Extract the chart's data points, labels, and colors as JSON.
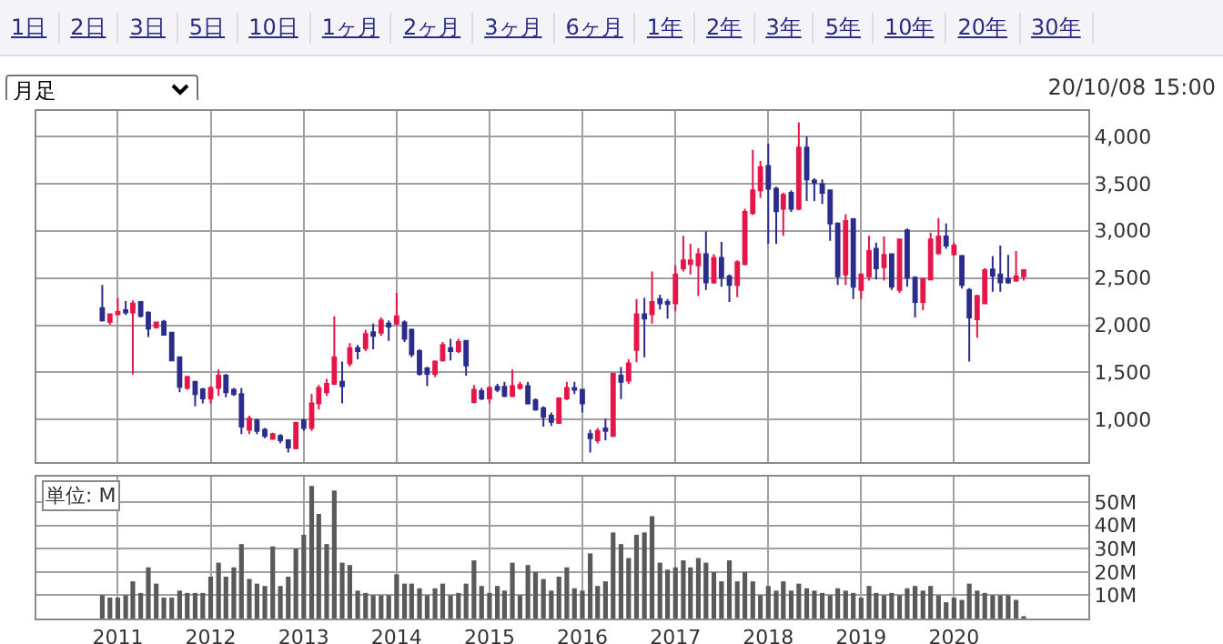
{
  "chart_data": [
    {
      "type": "other",
      "annotations": [
        "1日",
        "2日",
        "3日",
        "5日",
        "10日",
        "1ヶ月",
        "2ヶ月",
        "3ヶ月",
        "6ヶ月",
        "1年",
        "2年",
        "3年",
        "5年",
        "10年",
        "20年",
        "30年"
      ]
    },
    {
      "type": "candlestick",
      "title": "月足",
      "subtitle": "20/10/08 15:00",
      "x": [
        "2010-11",
        "2010-12",
        "2011-01",
        "2011-02",
        "2011-03",
        "2011-04",
        "2011-05",
        "2011-06",
        "2011-07",
        "2011-08",
        "2011-09",
        "2011-10",
        "2011-11",
        "2011-12",
        "2012-01",
        "2012-02",
        "2012-03",
        "2012-04",
        "2012-05",
        "2012-06",
        "2012-07",
        "2012-08",
        "2012-09",
        "2012-10",
        "2012-11",
        "2012-12",
        "2013-01",
        "2013-02",
        "2013-03",
        "2013-04",
        "2013-05",
        "2013-06",
        "2013-07",
        "2013-08",
        "2013-09",
        "2013-10",
        "2013-11",
        "2013-12",
        "2014-01",
        "2014-02",
        "2014-03",
        "2014-04",
        "2014-05",
        "2014-06",
        "2014-07",
        "2014-08",
        "2014-09",
        "2014-10",
        "2014-11",
        "2014-12",
        "2015-01",
        "2015-02",
        "2015-03",
        "2015-04",
        "2015-05",
        "2015-06",
        "2015-07",
        "2015-08",
        "2015-09",
        "2015-10",
        "2015-11",
        "2015-12",
        "2016-01",
        "2016-02",
        "2016-03",
        "2016-04",
        "2016-05",
        "2016-06",
        "2016-07",
        "2016-08",
        "2016-09",
        "2016-10",
        "2016-11",
        "2016-12",
        "2017-01",
        "2017-02",
        "2017-03",
        "2017-04",
        "2017-05",
        "2017-06",
        "2017-07",
        "2017-08",
        "2017-09",
        "2017-10",
        "2017-11",
        "2017-12",
        "2018-01",
        "2018-02",
        "2018-03",
        "2018-04",
        "2018-05",
        "2018-06",
        "2018-07",
        "2018-08",
        "2018-09",
        "2018-10",
        "2018-11",
        "2018-12",
        "2019-01",
        "2019-02",
        "2019-03",
        "2019-04",
        "2019-05",
        "2019-06",
        "2019-07",
        "2019-08",
        "2019-09",
        "2019-10",
        "2019-11",
        "2019-12",
        "2020-01",
        "2020-02",
        "2020-03",
        "2020-04",
        "2020-05",
        "2020-06",
        "2020-07",
        "2020-08",
        "2020-09",
        "2020-10"
      ],
      "ohlc": [
        [
          2180,
          2427,
          2040,
          2050
        ],
        [
          2037,
          2115,
          2005,
          2115
        ],
        [
          2115,
          2290,
          2105,
          2140
        ],
        [
          2160,
          2257,
          2108,
          2135
        ],
        [
          2135,
          2264,
          1478,
          2230
        ],
        [
          2245,
          2245,
          2082,
          2100
        ],
        [
          2134,
          2147,
          1874,
          1965
        ],
        [
          1978,
          2030,
          1965,
          2030
        ],
        [
          2037,
          2056,
          1900,
          1900
        ],
        [
          1920,
          1920,
          1627,
          1627
        ],
        [
          1660,
          1660,
          1290,
          1348
        ],
        [
          1335,
          1465,
          1315,
          1452
        ],
        [
          1400,
          1400,
          1140,
          1270
        ],
        [
          1322,
          1335,
          1172,
          1225
        ],
        [
          1225,
          1354,
          1172,
          1335
        ],
        [
          1335,
          1530,
          1250,
          1465
        ],
        [
          1465,
          1485,
          1237,
          1290
        ],
        [
          1315,
          1335,
          1250,
          1270
        ],
        [
          1270,
          1335,
          847,
          925
        ],
        [
          893,
          1042,
          847,
          1010
        ],
        [
          990,
          1010,
          847,
          880
        ],
        [
          893,
          912,
          802,
          828
        ],
        [
          795,
          860,
          790,
          847
        ],
        [
          828,
          847,
          750,
          782
        ],
        [
          782,
          790,
          652,
          705
        ],
        [
          698,
          977,
          685,
          964
        ],
        [
          990,
          1010,
          880,
          912
        ],
        [
          912,
          1270,
          880,
          1172
        ],
        [
          1172,
          1367,
          1107,
          1335
        ],
        [
          1290,
          1432,
          1250,
          1380
        ],
        [
          1380,
          2095,
          1367,
          1660
        ],
        [
          1400,
          1615,
          1172,
          1355
        ],
        [
          1595,
          1810,
          1562,
          1757
        ],
        [
          1757,
          1790,
          1640,
          1725
        ],
        [
          1757,
          1952,
          1725,
          1907
        ],
        [
          1926,
          2017,
          1745,
          1887
        ],
        [
          1920,
          2082,
          1887,
          2050
        ],
        [
          2017,
          2050,
          1835,
          1985
        ],
        [
          2017,
          2342,
          1998,
          2095
        ],
        [
          2030,
          2050,
          1822,
          1855
        ],
        [
          1952,
          1965,
          1660,
          1692
        ],
        [
          1725,
          1744,
          1465,
          1484
        ],
        [
          1543,
          1560,
          1354,
          1484
        ],
        [
          1484,
          1627,
          1452,
          1614
        ],
        [
          1627,
          1822,
          1614,
          1790
        ],
        [
          1757,
          1855,
          1627,
          1725
        ],
        [
          1725,
          1855,
          1705,
          1822
        ],
        [
          1835,
          1835,
          1465,
          1575
        ],
        [
          1185,
          1367,
          1172,
          1315
        ],
        [
          1302,
          1335,
          1205,
          1225
        ],
        [
          1225,
          1354,
          1172,
          1335
        ],
        [
          1348,
          1380,
          1290,
          1315
        ],
        [
          1348,
          1400,
          1237,
          1250
        ],
        [
          1250,
          1530,
          1237,
          1354
        ],
        [
          1335,
          1400,
          1315,
          1367
        ],
        [
          1354,
          1400,
          1160,
          1172
        ],
        [
          1205,
          1225,
          1094,
          1107
        ],
        [
          1120,
          1140,
          925,
          1029
        ],
        [
          1042,
          1075,
          932,
          977
        ],
        [
          964,
          1237,
          955,
          1225
        ],
        [
          1225,
          1400,
          1205,
          1335
        ],
        [
          1335,
          1400,
          1270,
          1315
        ],
        [
          1315,
          1315,
          1075,
          1172
        ],
        [
          847,
          893,
          652,
          802
        ],
        [
          782,
          912,
          750,
          880
        ],
        [
          906,
          1010,
          782,
          880
        ],
        [
          828,
          1497,
          815,
          1484
        ],
        [
          1465,
          1556,
          1218,
          1400
        ],
        [
          1413,
          1640,
          1380,
          1595
        ],
        [
          1738,
          2277,
          1608,
          2115
        ],
        [
          2115,
          2290,
          1660,
          2070
        ],
        [
          2115,
          2570,
          2017,
          2245
        ],
        [
          2277,
          2323,
          2167,
          2232
        ],
        [
          2245,
          2277,
          2070,
          2225
        ],
        [
          2232,
          2635,
          2147,
          2537
        ],
        [
          2602,
          2947,
          2570,
          2687
        ],
        [
          2648,
          2862,
          2537,
          2687
        ],
        [
          2635,
          2817,
          2310,
          2752
        ],
        [
          2752,
          2992,
          2375,
          2453
        ],
        [
          2453,
          2752,
          2440,
          2713
        ],
        [
          2713,
          2882,
          2408,
          2505
        ],
        [
          2518,
          2537,
          2245,
          2427
        ],
        [
          2427,
          2687,
          2297,
          2667
        ],
        [
          2648,
          3233,
          2635,
          3200
        ],
        [
          3188,
          3857,
          3168,
          3428
        ],
        [
          3428,
          3740,
          3350,
          3675
        ],
        [
          3688,
          3922,
          2862,
          3447
        ],
        [
          3447,
          3467,
          2862,
          3207
        ],
        [
          3233,
          3402,
          2947,
          3382
        ],
        [
          3402,
          3428,
          3200,
          3233
        ],
        [
          3233,
          4150,
          3220,
          3883
        ],
        [
          3883,
          4000,
          3317,
          3545
        ],
        [
          3532,
          3558,
          3317,
          3512
        ],
        [
          3493,
          3545,
          3285,
          3402
        ],
        [
          3428,
          3428,
          2895,
          3077
        ],
        [
          3077,
          3090,
          2427,
          2518
        ],
        [
          2537,
          3175,
          2427,
          3103
        ],
        [
          3122,
          3135,
          2277,
          2408
        ],
        [
          2375,
          2550,
          2277,
          2537
        ],
        [
          2518,
          2947,
          2473,
          2785
        ],
        [
          2810,
          2875,
          2485,
          2602
        ],
        [
          2615,
          2940,
          2473,
          2745
        ],
        [
          2752,
          2760,
          2375,
          2408
        ],
        [
          2375,
          2908,
          2342,
          2908
        ],
        [
          3005,
          3025,
          2408,
          2505
        ],
        [
          2505,
          2518,
          2082,
          2245
        ],
        [
          2245,
          2505,
          2160,
          2492
        ],
        [
          2485,
          2980,
          2485,
          2908
        ],
        [
          2765,
          3135,
          2745,
          2940
        ],
        [
          2940,
          3077,
          2810,
          2843
        ],
        [
          2752,
          2875,
          2732,
          2843
        ],
        [
          2732,
          2745,
          2388,
          2427
        ],
        [
          2375,
          2394,
          1614,
          2082
        ],
        [
          2063,
          2323,
          1868,
          2310
        ],
        [
          2232,
          2602,
          2225,
          2583
        ],
        [
          2590,
          2732,
          2355,
          2525
        ],
        [
          2537,
          2843,
          2355,
          2453
        ],
        [
          2492,
          2745,
          2440,
          2453
        ],
        [
          2472,
          2785,
          2460,
          2518
        ],
        [
          2518,
          2595,
          2472,
          2583
        ]
      ],
      "colors": [
        "#2b2c8c",
        "#e5164a",
        "#e5164a",
        "#2b2c8c",
        "#e5164a",
        "#2b2c8c",
        "#2b2c8c",
        "#e5164a",
        "#2b2c8c",
        "#2b2c8c",
        "#2b2c8c",
        "#e5164a",
        "#2b2c8c",
        "#2b2c8c",
        "#e5164a",
        "#e5164a",
        "#2b2c8c",
        "#2b2c8c",
        "#2b2c8c",
        "#e5164a",
        "#2b2c8c",
        "#2b2c8c",
        "#e5164a",
        "#2b2c8c",
        "#2b2c8c",
        "#e5164a",
        "#2b2c8c",
        "#e5164a",
        "#e5164a",
        "#e5164a",
        "#e5164a",
        "#2b2c8c",
        "#e5164a",
        "#2b2c8c",
        "#e5164a",
        "#2b2c8c",
        "#e5164a",
        "#2b2c8c",
        "#e5164a",
        "#2b2c8c",
        "#2b2c8c",
        "#2b2c8c",
        "#2b2c8c",
        "#e5164a",
        "#e5164a",
        "#2b2c8c",
        "#e5164a",
        "#2b2c8c",
        "#e5164a",
        "#2b2c8c",
        "#e5164a",
        "#2b2c8c",
        "#2b2c8c",
        "#e5164a",
        "#e5164a",
        "#2b2c8c",
        "#2b2c8c",
        "#2b2c8c",
        "#2b2c8c",
        "#e5164a",
        "#e5164a",
        "#2b2c8c",
        "#2b2c8c",
        "#2b2c8c",
        "#e5164a",
        "#2b2c8c",
        "#e5164a",
        "#2b2c8c",
        "#e5164a",
        "#e5164a",
        "#2b2c8c",
        "#e5164a",
        "#2b2c8c",
        "#2b2c8c",
        "#e5164a",
        "#e5164a",
        "#e5164a",
        "#e5164a",
        "#2b2c8c",
        "#e5164a",
        "#2b2c8c",
        "#2b2c8c",
        "#e5164a",
        "#e5164a",
        "#e5164a",
        "#e5164a",
        "#2b2c8c",
        "#2b2c8c",
        "#e5164a",
        "#2b2c8c",
        "#e5164a",
        "#2b2c8c",
        "#2b2c8c",
        "#2b2c8c",
        "#2b2c8c",
        "#2b2c8c",
        "#e5164a",
        "#2b2c8c",
        "#e5164a",
        "#e5164a",
        "#2b2c8c",
        "#e5164a",
        "#2b2c8c",
        "#e5164a",
        "#2b2c8c",
        "#2b2c8c",
        "#e5164a",
        "#e5164a",
        "#e5164a",
        "#2b2c8c",
        "#e5164a",
        "#2b2c8c",
        "#2b2c8c",
        "#e5164a",
        "#e5164a",
        "#2b2c8c",
        "#2b2c8c",
        "#2b2c8c",
        "#e5164a",
        "#e5164a"
      ],
      "xlim": [
        "2010-02-15",
        "2021-06-12"
      ],
      "xticks": [
        "2011",
        "2012",
        "2013",
        "2014",
        "2015",
        "2016",
        "2017",
        "2018",
        "2019",
        "2020"
      ],
      "ylim": [
        550,
        4270
      ],
      "yticks": [
        {
          "value": 1000,
          "label": "1,000"
        },
        {
          "value": 1500,
          "label": "1,500"
        },
        {
          "value": 2000,
          "label": "2,000"
        },
        {
          "value": 2500,
          "label": "2,500"
        },
        {
          "value": 3000,
          "label": "3,000"
        },
        {
          "value": 3500,
          "label": "3,500"
        },
        {
          "value": 4000,
          "label": "4,000"
        }
      ],
      "grid": true,
      "tick_labels": "y"
    },
    {
      "type": "bar",
      "annotations": [
        "単位: M"
      ],
      "color": "#5a5a5a",
      "x": [
        "2010-11",
        "2010-12",
        "2011-01",
        "2011-02",
        "2011-03",
        "2011-04",
        "2011-05",
        "2011-06",
        "2011-07",
        "2011-08",
        "2011-09",
        "2011-10",
        "2011-11",
        "2011-12",
        "2012-01",
        "2012-02",
        "2012-03",
        "2012-04",
        "2012-05",
        "2012-06",
        "2012-07",
        "2012-08",
        "2012-09",
        "2012-10",
        "2012-11",
        "2012-12",
        "2013-01",
        "2013-02",
        "2013-03",
        "2013-04",
        "2013-05",
        "2013-06",
        "2013-07",
        "2013-08",
        "2013-09",
        "2013-10",
        "2013-11",
        "2013-12",
        "2014-01",
        "2014-02",
        "2014-03",
        "2014-04",
        "2014-05",
        "2014-06",
        "2014-07",
        "2014-08",
        "2014-09",
        "2014-10",
        "2014-11",
        "2014-12",
        "2015-01",
        "2015-02",
        "2015-03",
        "2015-04",
        "2015-05",
        "2015-06",
        "2015-07",
        "2015-08",
        "2015-09",
        "2015-10",
        "2015-11",
        "2015-12",
        "2016-01",
        "2016-02",
        "2016-03",
        "2016-04",
        "2016-05",
        "2016-06",
        "2016-07",
        "2016-08",
        "2016-09",
        "2016-10",
        "2016-11",
        "2016-12",
        "2017-01",
        "2017-02",
        "2017-03",
        "2017-04",
        "2017-05",
        "2017-06",
        "2017-07",
        "2017-08",
        "2017-09",
        "2017-10",
        "2017-11",
        "2017-12",
        "2018-01",
        "2018-02",
        "2018-03",
        "2018-04",
        "2018-05",
        "2018-06",
        "2018-07",
        "2018-08",
        "2018-09",
        "2018-10",
        "2018-11",
        "2018-12",
        "2019-01",
        "2019-02",
        "2019-03",
        "2019-04",
        "2019-05",
        "2019-06",
        "2019-07",
        "2019-08",
        "2019-09",
        "2019-10",
        "2019-11",
        "2019-12",
        "2020-01",
        "2020-02",
        "2020-03",
        "2020-04",
        "2020-05",
        "2020-06",
        "2020-07",
        "2020-08",
        "2020-09",
        "2020-10"
      ],
      "values": [
        10,
        9,
        9,
        10,
        16,
        11,
        22,
        15,
        9,
        9,
        12,
        11,
        11,
        11,
        18,
        24,
        18,
        22,
        32,
        17,
        15,
        14,
        31,
        14,
        18,
        30,
        36,
        57,
        45,
        32,
        55,
        24,
        23,
        12,
        11,
        10,
        10,
        10,
        19,
        15,
        15,
        13,
        10,
        13,
        15,
        10,
        11,
        15,
        25,
        14,
        11,
        14,
        12,
        24,
        10,
        23,
        20,
        17,
        12,
        18,
        22,
        13,
        12,
        28,
        14,
        16,
        37,
        32,
        26,
        36,
        37,
        44,
        24,
        21,
        22,
        25,
        22,
        26,
        24,
        20,
        16,
        25,
        16,
        20,
        16,
        10,
        14,
        12,
        16,
        12,
        15,
        13,
        12,
        11,
        10,
        13,
        12,
        11,
        9,
        14,
        11,
        10,
        11,
        10,
        13,
        14,
        12,
        14,
        10,
        7,
        9,
        8,
        15,
        12,
        11,
        10,
        10,
        10,
        8,
        1
      ],
      "xlim": [
        "2010-02-15",
        "2021-06-12"
      ],
      "xticks": [
        "2011",
        "2012",
        "2013",
        "2014",
        "2015",
        "2016",
        "2017",
        "2018",
        "2019",
        "2020"
      ],
      "ylim": [
        0,
        61
      ],
      "yticks": [
        {
          "value": 10,
          "label": "10M"
        },
        {
          "value": 20,
          "label": "20M"
        },
        {
          "value": 30,
          "label": "30M"
        },
        {
          "value": 40,
          "label": "40M"
        },
        {
          "value": 50,
          "label": "50M"
        }
      ],
      "grid": true
    }
  ]
}
